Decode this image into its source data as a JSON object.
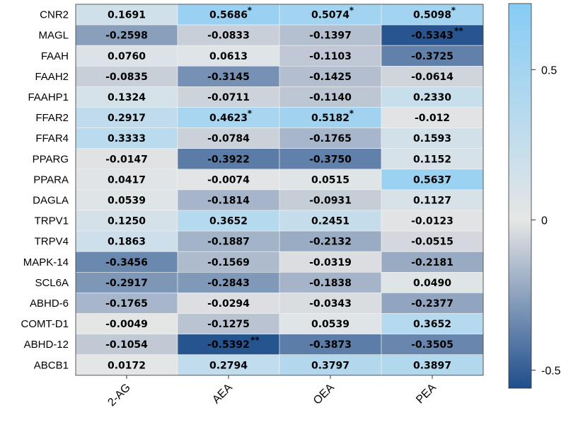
{
  "chart_data": {
    "type": "heatmap",
    "rows": [
      "CNR2",
      "MAGL",
      "FAAH",
      "FAAH2",
      "FAAHP1",
      "FFAR2",
      "FFAR4",
      "PPARG",
      "PPARA",
      "DAGLA",
      "TRPV1",
      "TRPV4",
      "MAPK-14",
      "SCL6A",
      "ABHD-6",
      "COMT-D1",
      "ABHD-12",
      "ABCB1"
    ],
    "columns": [
      "2-AG",
      "AEA",
      "OEA",
      "PEA"
    ],
    "values": [
      [
        0.1691,
        0.5686,
        0.5074,
        0.5098
      ],
      [
        -0.2598,
        -0.0833,
        -0.1397,
        -0.5343
      ],
      [
        0.076,
        0.0613,
        -0.1103,
        -0.3725
      ],
      [
        -0.0835,
        -0.3145,
        -0.1425,
        -0.0614
      ],
      [
        0.1324,
        -0.0711,
        -0.114,
        0.233
      ],
      [
        0.2917,
        0.4623,
        0.5182,
        -0.012
      ],
      [
        0.3333,
        -0.0784,
        -0.1765,
        0.1593
      ],
      [
        -0.0147,
        -0.3922,
        -0.375,
        0.1152
      ],
      [
        0.0417,
        -0.0074,
        0.0515,
        0.5637
      ],
      [
        0.0539,
        -0.1814,
        -0.0931,
        0.1127
      ],
      [
        0.125,
        0.3652,
        0.2451,
        -0.0123
      ],
      [
        0.1863,
        -0.1887,
        -0.2132,
        -0.0515
      ],
      [
        -0.3456,
        -0.1569,
        -0.0319,
        -0.2181
      ],
      [
        -0.2917,
        -0.2843,
        -0.1838,
        0.049
      ],
      [
        -0.1765,
        -0.0294,
        -0.0343,
        -0.2377
      ],
      [
        -0.0049,
        -0.1275,
        0.0539,
        0.3652
      ],
      [
        -0.1054,
        -0.5392,
        -0.3873,
        -0.3505
      ],
      [
        0.0172,
        0.2794,
        0.3797,
        0.3897
      ]
    ],
    "labels": [
      [
        "0.1691",
        "0.5686",
        "0.5074",
        "0.5098"
      ],
      [
        "-0.2598",
        "-0.0833",
        "-0.1397",
        "-0.5343"
      ],
      [
        "0.0760",
        "0.0613",
        "-0.1103",
        "-0.3725"
      ],
      [
        "-0.0835",
        "-0.3145",
        "-0.1425",
        "-0.0614"
      ],
      [
        "0.1324",
        "-0.0711",
        "-0.1140",
        "0.2330"
      ],
      [
        "0.2917",
        "0.4623",
        "0.5182",
        "-0.012"
      ],
      [
        "0.3333",
        "-0.0784",
        "-0.1765",
        "0.1593"
      ],
      [
        "-0.0147",
        "-0.3922",
        "-0.3750",
        "0.1152"
      ],
      [
        "0.0417",
        "-0.0074",
        "0.0515",
        "0.5637"
      ],
      [
        "0.0539",
        "-0.1814",
        "-0.0931",
        "0.1127"
      ],
      [
        "0.1250",
        "0.3652",
        "0.2451",
        "-0.0123"
      ],
      [
        "0.1863",
        "-0.1887",
        "-0.2132",
        "-0.0515"
      ],
      [
        "-0.3456",
        "-0.1569",
        "-0.0319",
        "-0.2181"
      ],
      [
        "-0.2917",
        "-0.2843",
        "-0.1838",
        "0.0490"
      ],
      [
        "-0.1765",
        "-0.0294",
        "-0.0343",
        "-0.2377"
      ],
      [
        "-0.0049",
        "-0.1275",
        "0.0539",
        "0.3652"
      ],
      [
        "-0.1054",
        "-0.5392",
        "-0.3873",
        "-0.3505"
      ],
      [
        "0.0172",
        "0.2794",
        "0.3797",
        "0.3897"
      ]
    ],
    "significance": [
      [
        "",
        "*",
        "*",
        "*"
      ],
      [
        "",
        "",
        "",
        "**"
      ],
      [
        "",
        "",
        "",
        ""
      ],
      [
        "",
        "",
        "",
        ""
      ],
      [
        "",
        "",
        "",
        ""
      ],
      [
        "",
        "*",
        "*",
        ""
      ],
      [
        "",
        "",
        "",
        ""
      ],
      [
        "",
        "",
        "",
        ""
      ],
      [
        "",
        "",
        "",
        ""
      ],
      [
        "",
        "",
        "",
        ""
      ],
      [
        "",
        "",
        "",
        ""
      ],
      [
        "",
        "",
        "",
        ""
      ],
      [
        "",
        "",
        "",
        ""
      ],
      [
        "",
        "",
        "",
        ""
      ],
      [
        "",
        "",
        "",
        ""
      ],
      [
        "",
        "",
        "",
        ""
      ],
      [
        "",
        "**",
        "",
        ""
      ],
      [
        "",
        "",
        "",
        ""
      ]
    ],
    "colorbar": {
      "range": [
        -0.56,
        0.72
      ],
      "ticks": [
        0.5,
        0,
        -0.5
      ],
      "tick_labels": [
        "0.5",
        "0",
        "-0.5"
      ]
    },
    "colors": {
      "negative": "#1f4e8c",
      "zero": "#e6e6e6",
      "positive": "#86ccf5"
    },
    "title": "",
    "xlabel": "",
    "ylabel": ""
  }
}
